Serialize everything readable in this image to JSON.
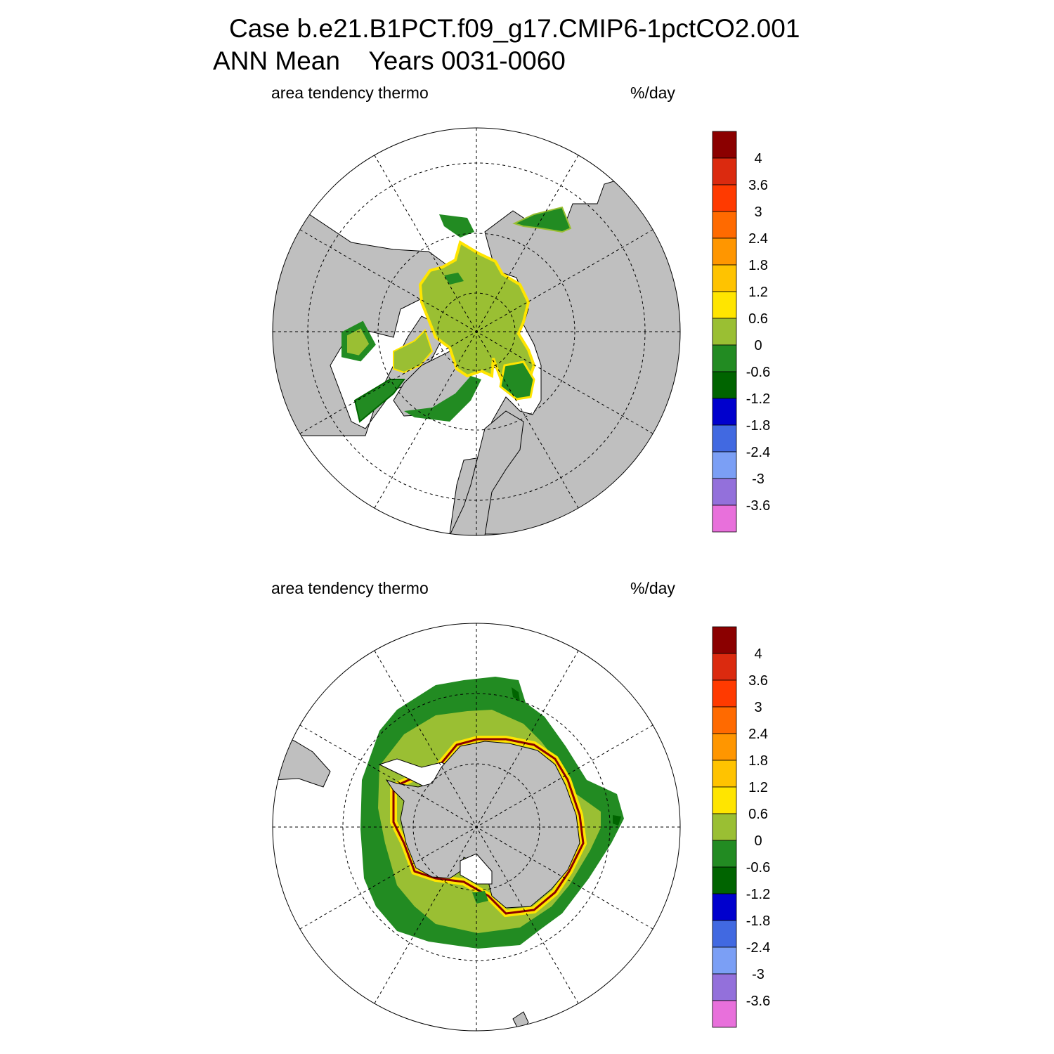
{
  "title": {
    "case": "Case b.e21.B1PCT.f09_g17.CMIP6-1pctCO2.001",
    "mean": "ANN Mean",
    "years": "Years 0031-0060"
  },
  "panels": [
    {
      "hemisphere": "north",
      "left_label": "area tendency thermo",
      "right_label": "%/day"
    },
    {
      "hemisphere": "south",
      "left_label": "area tendency thermo",
      "right_label": "%/day"
    }
  ],
  "colorbar": {
    "colors": [
      "#8b0000",
      "#db2a0f",
      "#ff3a00",
      "#ff6a00",
      "#ff9600",
      "#ffc300",
      "#ffe500",
      "#9abf33",
      "#228b22",
      "#006400",
      "#0000cd",
      "#4169e1",
      "#7b9ff5",
      "#9370db",
      "#e870db"
    ],
    "tick_labels": [
      "4",
      "3.6",
      "3",
      "2.4",
      "1.8",
      "1.2",
      "0.6",
      "0",
      "-0.6",
      "-1.2",
      "-1.8",
      "-2.4",
      "-3",
      "-3.6"
    ]
  },
  "map_colors": {
    "land": "#bfbfbf",
    "ocean": "#ffffff",
    "ice_light_green": "#9abf33",
    "ice_green": "#228b22",
    "ice_dark_green": "#006400",
    "edge_yellow": "#ffe500",
    "edge_red": "#8b0000"
  }
}
